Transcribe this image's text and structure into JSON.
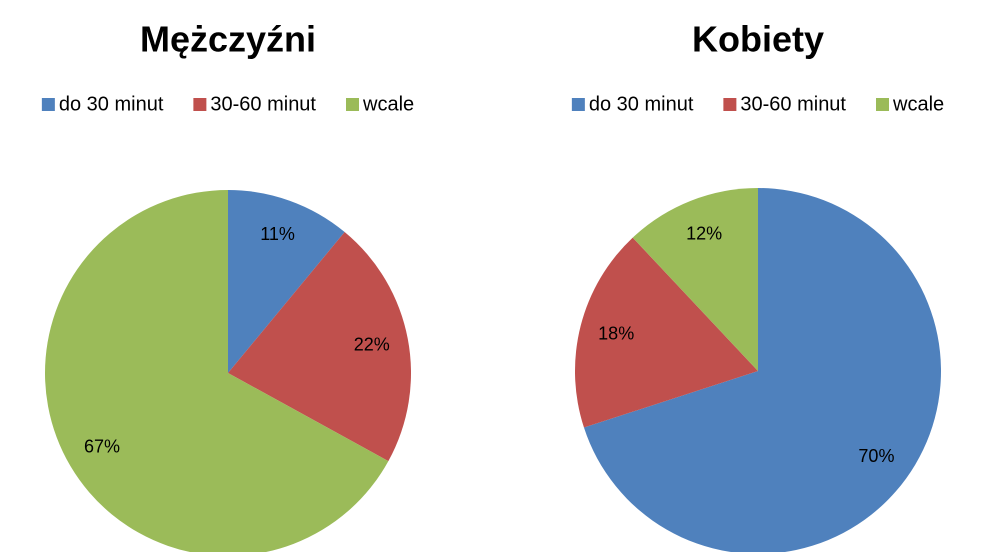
{
  "chart_data": [
    {
      "type": "pie",
      "title": "Mężczyźni",
      "categories": [
        "do 30 minut",
        "30-60 minut",
        "wcale"
      ],
      "values": [
        11,
        22,
        67
      ],
      "value_labels": [
        "11%",
        "22%",
        "67%"
      ],
      "colors": [
        "#4f81bd",
        "#c0504d",
        "#9bbb59"
      ],
      "legend": "top"
    },
    {
      "type": "pie",
      "title": "Kobiety",
      "categories": [
        "do 30 minut",
        "30-60 minut",
        "wcale"
      ],
      "values": [
        70,
        18,
        12
      ],
      "value_labels": [
        "70%",
        "18%",
        "12%"
      ],
      "colors": [
        "#4f81bd",
        "#c0504d",
        "#9bbb59"
      ],
      "legend": "top"
    }
  ]
}
